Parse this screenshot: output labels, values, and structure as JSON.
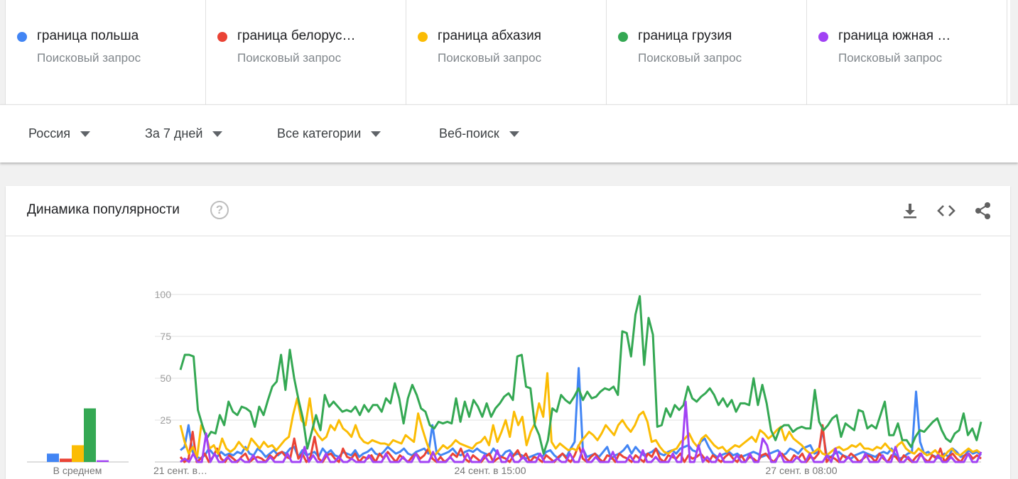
{
  "terms": [
    {
      "name": "граница польша",
      "sub": "Поисковый запрос",
      "color": "#1a73e8"
    },
    {
      "name": "граница белорус…",
      "sub": "Поисковый запрос",
      "color": "#d93025"
    },
    {
      "name": "граница абхазия",
      "sub": "Поисковый запрос",
      "color": "#f9ab00"
    },
    {
      "name": "граница грузия",
      "sub": "Поисковый запрос",
      "color": "#1e8e3e"
    },
    {
      "name": "граница южная …",
      "sub": "Поисковый запрос",
      "color": "#9334e6"
    }
  ],
  "filters": {
    "region": "Россия",
    "period": "За 7 дней",
    "category": "Все категории",
    "search_type": "Веб-поиск"
  },
  "card": {
    "title": "Динамика популярности",
    "help_symbol": "?",
    "icons": [
      "download-icon",
      "embed-code-icon",
      "share-icon"
    ]
  },
  "chart_data": {
    "type": "line",
    "ylim": [
      0,
      100
    ],
    "yticks": [
      25,
      50,
      75,
      100
    ],
    "xtick_labels": [
      "21 сент. в…",
      "24 сент. в 15:00",
      "27 сент. в 08:00"
    ],
    "average_label": "В среднем",
    "averages": [
      5,
      2,
      10,
      32,
      1
    ],
    "colors": [
      "#4285f4",
      "#ea4335",
      "#fbbc04",
      "#34a853",
      "#a142f4"
    ],
    "series": [
      {
        "name": "граница польша",
        "values": [
          7,
          9,
          22,
          6,
          3,
          2,
          4,
          8,
          5,
          3,
          6,
          4,
          5,
          4,
          6,
          5,
          9,
          5,
          4,
          8,
          6,
          3,
          5,
          7,
          4,
          6,
          5,
          8,
          9,
          3,
          7,
          4,
          5,
          6,
          3,
          8,
          5,
          7,
          4,
          3,
          6,
          5,
          4,
          7,
          3,
          5,
          6,
          8,
          5,
          4,
          6,
          9,
          7,
          5,
          6,
          8,
          5,
          4,
          6,
          7,
          8,
          5,
          22,
          6,
          4,
          5,
          6,
          8,
          5,
          4,
          6,
          7,
          6,
          8,
          6,
          5,
          4,
          8,
          5,
          3,
          6,
          7,
          4,
          5,
          4,
          2,
          3,
          4,
          5,
          3,
          6,
          7,
          4,
          2,
          5,
          3,
          8,
          12,
          56,
          8,
          3,
          4,
          5,
          3,
          6,
          9,
          2,
          4,
          5,
          7,
          10,
          5,
          9,
          6,
          4,
          5,
          6,
          8,
          5,
          4,
          6,
          7,
          5,
          8,
          9,
          10,
          7,
          6,
          12,
          14,
          9,
          5,
          3,
          4,
          5,
          6,
          4,
          5,
          3,
          4,
          5,
          6,
          5,
          3,
          4,
          5,
          6,
          7,
          4,
          5,
          8,
          7,
          5,
          8,
          9,
          10,
          5,
          6,
          19,
          4,
          3,
          5,
          6,
          4,
          3,
          2,
          4,
          5,
          6,
          5,
          4,
          3,
          5,
          6,
          5,
          8,
          4,
          2,
          3,
          5,
          6,
          42,
          12,
          5,
          6,
          4,
          3,
          2,
          5,
          3,
          8,
          6,
          3,
          4,
          7,
          5,
          6,
          4
        ]
      },
      {
        "name": "граница белорус…",
        "values": [
          3,
          0,
          2,
          18,
          0,
          2,
          5,
          0,
          3,
          8,
          2,
          0,
          4,
          2,
          0,
          3,
          5,
          0,
          2,
          3,
          2,
          0,
          4,
          2,
          5,
          6,
          3,
          2,
          14,
          2,
          5,
          0,
          3,
          15,
          2,
          0,
          4,
          5,
          2,
          0,
          8,
          3,
          2,
          5,
          0,
          3,
          2,
          4,
          0,
          5,
          2,
          6,
          3,
          0,
          4,
          2,
          0,
          3,
          5,
          2,
          4,
          8,
          2,
          0,
          3,
          0,
          2,
          5,
          3,
          8,
          2,
          0,
          4,
          2,
          0,
          3,
          5,
          0,
          2,
          3,
          2,
          0,
          4,
          7,
          2,
          5,
          0,
          3,
          2,
          0,
          4,
          2,
          0,
          3,
          5,
          2,
          0,
          4,
          10,
          2,
          0,
          3,
          5,
          2,
          0,
          4,
          3,
          0,
          5,
          3,
          2,
          0,
          4,
          2,
          0,
          5,
          3,
          8,
          2,
          0,
          4,
          3,
          2,
          5,
          0,
          4,
          2,
          3,
          5,
          2,
          0,
          4,
          2,
          0,
          3,
          5,
          2,
          0,
          4,
          0,
          3,
          2,
          0,
          4,
          5,
          2,
          0,
          3,
          5,
          2,
          0,
          4,
          2,
          5,
          0,
          3,
          2,
          5,
          22,
          0,
          3,
          2,
          0,
          4,
          2,
          5,
          3,
          0,
          2,
          4,
          3,
          0,
          5,
          2,
          0,
          4,
          3,
          0,
          4,
          2,
          0,
          3,
          5,
          2,
          0,
          4,
          2,
          8,
          0,
          3,
          5,
          2,
          0,
          4,
          5,
          2,
          4,
          2
        ]
      },
      {
        "name": "граница абхазия",
        "values": [
          22,
          12,
          5,
          9,
          3,
          22,
          17,
          8,
          10,
          5,
          14,
          8,
          6,
          8,
          12,
          9,
          7,
          14,
          11,
          8,
          12,
          9,
          10,
          7,
          10,
          13,
          15,
          28,
          38,
          25,
          22,
          38,
          20,
          16,
          13,
          15,
          22,
          19,
          25,
          20,
          18,
          15,
          22,
          15,
          12,
          11,
          13,
          12,
          11,
          11,
          10,
          13,
          12,
          11,
          16,
          14,
          12,
          29,
          20,
          12,
          5,
          4,
          7,
          10,
          8,
          10,
          13,
          11,
          10,
          9,
          8,
          11,
          12,
          15,
          10,
          22,
          12,
          18,
          25,
          15,
          30,
          22,
          27,
          10,
          18,
          23,
          35,
          27,
          53,
          12,
          8,
          11,
          9,
          7,
          8,
          7,
          12,
          15,
          18,
          16,
          13,
          17,
          22,
          19,
          16,
          22,
          25,
          21,
          18,
          22,
          28,
          30,
          24,
          12,
          13,
          9,
          6,
          5,
          7,
          8,
          12,
          14,
          17,
          12,
          9,
          14,
          16,
          13,
          10,
          8,
          9,
          6,
          8,
          10,
          9,
          11,
          13,
          15,
          12,
          19,
          17,
          14,
          16,
          19,
          21,
          13,
          18,
          14,
          12,
          10,
          7,
          5,
          6,
          8,
          5,
          4,
          6,
          8,
          9,
          7,
          8,
          10,
          9,
          11,
          8,
          8,
          7,
          9,
          8,
          11,
          8,
          6,
          10,
          12,
          8,
          6,
          5,
          8,
          6,
          4,
          5,
          7,
          4,
          3,
          6,
          8,
          5,
          4,
          6,
          8,
          6,
          7,
          5
        ]
      },
      {
        "name": "граница грузия",
        "values": [
          55,
          64,
          64,
          63,
          31,
          22,
          14,
          18,
          17,
          28,
          22,
          36,
          30,
          28,
          33,
          32,
          30,
          21,
          33,
          28,
          37,
          45,
          48,
          64,
          43,
          67,
          50,
          37,
          26,
          8,
          18,
          28,
          19,
          40,
          33,
          36,
          33,
          30,
          31,
          30,
          33,
          28,
          34,
          30,
          34,
          34,
          30,
          38,
          35,
          47,
          38,
          23,
          38,
          46,
          40,
          32,
          30,
          22,
          20,
          24,
          23,
          24,
          23,
          38,
          24,
          36,
          27,
          37,
          33,
          27,
          35,
          27,
          32,
          35,
          39,
          41,
          37,
          63,
          64,
          45,
          44,
          22,
          16,
          5,
          13,
          32,
          30,
          40,
          37,
          35,
          39,
          44,
          37,
          42,
          38,
          39,
          42,
          44,
          43,
          45,
          40,
          78,
          77,
          63,
          88,
          99,
          58,
          86,
          76,
          21,
          22,
          32,
          27,
          34,
          31,
          34,
          45,
          38,
          36,
          39,
          41,
          44,
          40,
          34,
          38,
          33,
          37,
          30,
          35,
          35,
          34,
          50,
          34,
          46,
          35,
          19,
          13,
          20,
          22,
          22,
          18,
          20,
          21,
          20,
          20,
          43,
          24,
          19,
          22,
          26,
          28,
          15,
          23,
          21,
          19,
          31,
          30,
          20,
          22,
          20,
          28,
          36,
          16,
          16,
          23,
          13,
          13,
          9,
          15,
          19,
          18,
          21,
          24,
          26,
          19,
          14,
          12,
          17,
          19,
          29,
          16,
          20,
          13,
          24
        ]
      },
      {
        "name": "граница южная …",
        "values": [
          0,
          2,
          0,
          5,
          0,
          0,
          17,
          0,
          5,
          0,
          0,
          3,
          0,
          0,
          2,
          0,
          0,
          4,
          0,
          0,
          0,
          3,
          0,
          0,
          0,
          5,
          0,
          0,
          0,
          9,
          0,
          4,
          0,
          0,
          5,
          0,
          0,
          3,
          0,
          0,
          2,
          0,
          0,
          0,
          4,
          0,
          0,
          0,
          5,
          0,
          0,
          0,
          3,
          0,
          0,
          5,
          0,
          0,
          0,
          6,
          0,
          0,
          0,
          3,
          0,
          0,
          0,
          5,
          0,
          0,
          0,
          4,
          0,
          0,
          7,
          0,
          0,
          5,
          0,
          0,
          3,
          0,
          0,
          0,
          5,
          0,
          0,
          0,
          2,
          0,
          0,
          5,
          0,
          0,
          8,
          0,
          0,
          3,
          0,
          0,
          0,
          6,
          0,
          0,
          0,
          4,
          0,
          0,
          7,
          0,
          0,
          3,
          0,
          0,
          0,
          5,
          0,
          0,
          36,
          0,
          0,
          10,
          0,
          3,
          0,
          0,
          5,
          0,
          0,
          0,
          4,
          0,
          0,
          5,
          0,
          0,
          14,
          10,
          0,
          0,
          6,
          0,
          0,
          0,
          3,
          0,
          0,
          5,
          0,
          0,
          0,
          4,
          0,
          8,
          0,
          0,
          3,
          0,
          0,
          0,
          5,
          0,
          0,
          0,
          4,
          0,
          0,
          9,
          0,
          0,
          3,
          0,
          0,
          5,
          0,
          0,
          0,
          4,
          0,
          0,
          3,
          0,
          0,
          0,
          5,
          0,
          0,
          6
        ]
      }
    ]
  }
}
